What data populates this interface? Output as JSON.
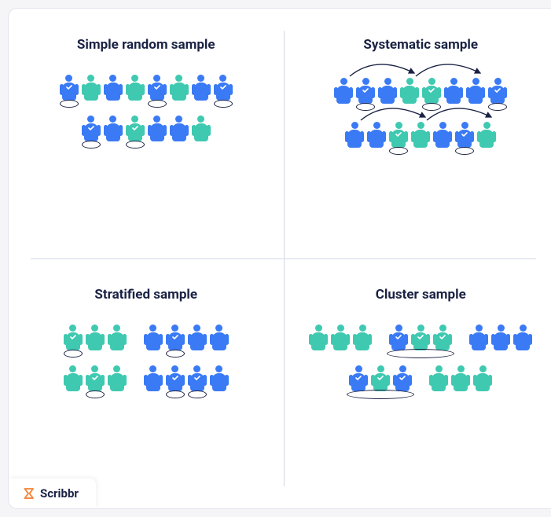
{
  "colors": {
    "blue": "#3a7af5",
    "teal": "#3fc9b0",
    "navy": "#1a2244",
    "logo_orange": "#f5873a",
    "ring": "#1a2244",
    "arc": "#1a2244",
    "divider": "#d4d7e6",
    "card_border": "#e2e4ee",
    "card_bg": "#ffffff"
  },
  "logo_text": "Scribbr",
  "panels": {
    "simple": {
      "title": "Simple random sample",
      "rows": [
        [
          {
            "c": "blue",
            "sel": true
          },
          {
            "c": "teal"
          },
          {
            "c": "blue"
          },
          {
            "c": "teal"
          },
          {
            "c": "blue",
            "sel": true
          },
          {
            "c": "teal"
          },
          {
            "c": "blue"
          },
          {
            "c": "blue",
            "sel": true
          }
        ],
        [
          {
            "c": "blue",
            "sel": true
          },
          {
            "c": "blue"
          },
          {
            "c": "teal",
            "sel": true
          },
          {
            "c": "blue"
          },
          {
            "c": "blue"
          },
          {
            "c": "teal"
          }
        ]
      ]
    },
    "systematic": {
      "title": "Systematic sample",
      "rows": [
        {
          "arcs": [
            [
              0,
              3
            ],
            [
              3,
              6
            ]
          ],
          "people": [
            {
              "c": "blue"
            },
            {
              "c": "blue",
              "sel": true
            },
            {
              "c": "blue"
            },
            {
              "c": "teal"
            },
            {
              "c": "teal",
              "sel": true
            },
            {
              "c": "blue"
            },
            {
              "c": "blue"
            },
            {
              "c": "blue",
              "sel": true
            }
          ]
        },
        {
          "arcs": [
            [
              0,
              3
            ],
            [
              3,
              6
            ]
          ],
          "people": [
            {
              "c": "blue"
            },
            {
              "c": "blue"
            },
            {
              "c": "teal",
              "sel": true
            },
            {
              "c": "teal"
            },
            {
              "c": "blue"
            },
            {
              "c": "blue",
              "sel": true
            },
            {
              "c": "teal"
            }
          ]
        }
      ]
    },
    "stratified": {
      "title": "Stratified sample",
      "groups": [
        [
          [
            {
              "c": "teal",
              "sel": true
            },
            {
              "c": "teal"
            },
            {
              "c": "teal"
            }
          ],
          [
            {
              "c": "blue"
            },
            {
              "c": "blue",
              "sel": true
            },
            {
              "c": "blue"
            },
            {
              "c": "blue"
            }
          ]
        ],
        [
          [
            {
              "c": "teal"
            },
            {
              "c": "teal",
              "sel": true
            },
            {
              "c": "teal"
            }
          ],
          [
            {
              "c": "blue"
            },
            {
              "c": "blue",
              "sel": true
            },
            {
              "c": "blue",
              "sel": true
            },
            {
              "c": "blue"
            }
          ]
        ]
      ]
    },
    "cluster": {
      "title": "Cluster sample",
      "groups": [
        [
          {
            "people": [
              {
                "c": "teal"
              },
              {
                "c": "teal"
              },
              {
                "c": "teal"
              }
            ]
          },
          {
            "people": [
              {
                "c": "blue",
                "sel": true
              },
              {
                "c": "teal",
                "sel": true
              },
              {
                "c": "teal",
                "sel": true
              }
            ],
            "cluster": true
          },
          {
            "people": [
              {
                "c": "blue"
              },
              {
                "c": "blue"
              },
              {
                "c": "blue"
              }
            ]
          }
        ],
        [
          {
            "people": [
              {
                "c": "blue",
                "sel": true
              },
              {
                "c": "teal",
                "sel": true
              },
              {
                "c": "blue",
                "sel": true
              }
            ],
            "cluster": true
          },
          {
            "people": [
              {
                "c": "teal"
              },
              {
                "c": "teal"
              },
              {
                "c": "teal"
              }
            ]
          }
        ]
      ]
    }
  }
}
